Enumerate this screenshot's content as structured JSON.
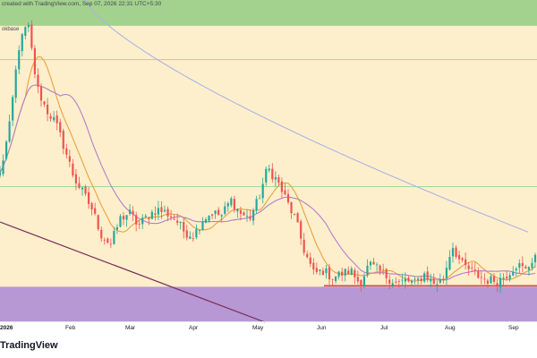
{
  "header": {
    "created_text": "created with TradingView.com, Sep 07, 2026 22:31 UTC+5:30",
    "sub_label": "okbase"
  },
  "branding": {
    "logo_text": "TradingView"
  },
  "colors": {
    "background": "#ffffff",
    "plot_bg": "#fdefcc",
    "top_zone": "#a3d18e",
    "bottom_zone": "#b797d4",
    "candle_up": "#26a69a",
    "candle_down": "#ef5350",
    "ma_short": "#e9a23b",
    "ma_mid": "#b57ec6",
    "ma_long": "#aab5e3",
    "hline": "#a5d79b",
    "support_line": "#e0454a",
    "trendline": "#7a2b55"
  },
  "chart_data": {
    "type": "candlestick",
    "title": "",
    "xlabel": "",
    "ylabel": "",
    "x_ticks": [
      "2026",
      "Feb",
      "Mar",
      "Apr",
      "May",
      "Jun",
      "Jul",
      "Aug",
      "Sep"
    ],
    "ylim": [
      0,
      100
    ],
    "grid": false,
    "legend": "none",
    "zones": [
      {
        "name": "",
        "from": 92,
        "to": 100,
        "color": "#a3d18e"
      },
      {
        "name": "",
        "from": 0,
        "to": 11,
        "color": "#b797d4"
      }
    ],
    "horizontal_lines": [
      {
        "value": 81.5,
        "color": "#a5d79b"
      },
      {
        "value": 42.1,
        "color": "#a5d79b"
      },
      {
        "value": 11.3,
        "color": "#e0454a"
      }
    ],
    "trendline": {
      "start": [
        0,
        31.1
      ],
      "end": [
        100,
        0
      ]
    },
    "anchors": [
      [
        0,
        46
      ],
      [
        1,
        60
      ],
      [
        2,
        85
      ],
      [
        3,
        93
      ],
      [
        4,
        73
      ],
      [
        5,
        66
      ],
      [
        6,
        62
      ],
      [
        7,
        54
      ],
      [
        8,
        45
      ],
      [
        9,
        40
      ],
      [
        10,
        35
      ],
      [
        11,
        27
      ],
      [
        12,
        24
      ],
      [
        13,
        32
      ],
      [
        14,
        34
      ],
      [
        15,
        30
      ],
      [
        16,
        33
      ],
      [
        17,
        35
      ],
      [
        18,
        34
      ],
      [
        19,
        32
      ],
      [
        20,
        28
      ],
      [
        21,
        27
      ],
      [
        22,
        32
      ],
      [
        23,
        34
      ],
      [
        24,
        33
      ],
      [
        25,
        38
      ],
      [
        26,
        34
      ],
      [
        27,
        32
      ],
      [
        28,
        38
      ],
      [
        29,
        48
      ],
      [
        30,
        44
      ],
      [
        31,
        38
      ],
      [
        32,
        32
      ],
      [
        33,
        22
      ],
      [
        34,
        15
      ],
      [
        35,
        16
      ],
      [
        36,
        14
      ],
      [
        37,
        15
      ],
      [
        38,
        16
      ],
      [
        39,
        12
      ],
      [
        40,
        18
      ],
      [
        41,
        16
      ],
      [
        42,
        14
      ],
      [
        43,
        12
      ],
      [
        44,
        13
      ],
      [
        45,
        12
      ],
      [
        46,
        15
      ],
      [
        47,
        12
      ],
      [
        48,
        13
      ],
      [
        49,
        24
      ],
      [
        50,
        18
      ],
      [
        51,
        16
      ],
      [
        52,
        14
      ],
      [
        53,
        13
      ],
      [
        54,
        13
      ],
      [
        55,
        15
      ],
      [
        56,
        18
      ],
      [
        57,
        16
      ],
      [
        58,
        21
      ]
    ],
    "moving_averages": [
      {
        "name": "",
        "period": 9,
        "color": "#e9a23b"
      },
      {
        "name": "",
        "period": 20,
        "color": "#b57ec6"
      },
      {
        "name": "",
        "period": 100,
        "color": "#aab5e3"
      }
    ]
  }
}
